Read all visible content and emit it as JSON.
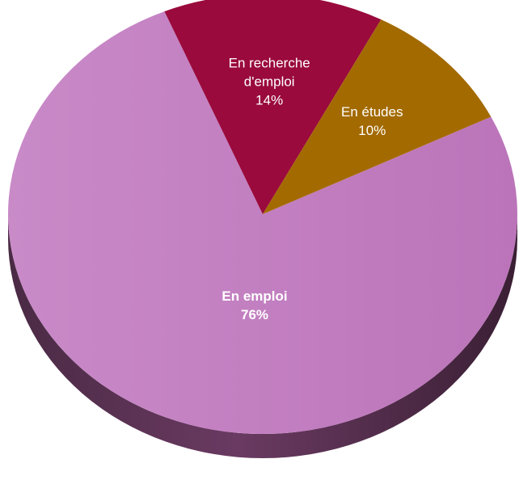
{
  "chart_data": {
    "type": "pie",
    "style": "3d",
    "title": "",
    "slices": [
      {
        "label": "En emploi",
        "value": 76,
        "value_label": "76%",
        "color": "#c07cbf",
        "bold": true
      },
      {
        "label": "En recherche d'emploi",
        "label_lines": [
          "En recherche",
          "d'emploi"
        ],
        "value": 14,
        "value_label": "14%",
        "color": "#9a0a3c",
        "bold": false
      },
      {
        "label": "En études",
        "label_lines": [
          "En études"
        ],
        "value": 10,
        "value_label": "10%",
        "color": "#a36a00",
        "bold": false
      }
    ]
  }
}
